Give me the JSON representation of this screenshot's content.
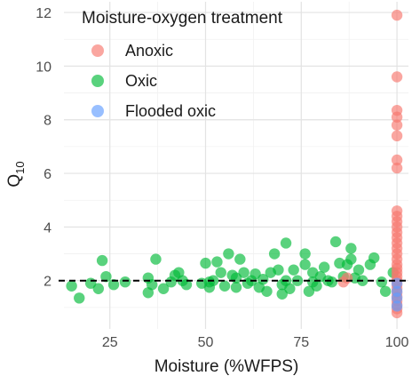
{
  "chart_data": {
    "type": "scatter",
    "title": "",
    "xlabel": "Moisture (%WFPS)",
    "ylabel_main": "Q",
    "ylabel_sub": "10",
    "xlim": [
      13,
      103
    ],
    "ylim": [
      0.2,
      12.4
    ],
    "xticks": [
      25,
      50,
      75,
      100
    ],
    "yticks": [
      2,
      4,
      6,
      8,
      10,
      12
    ],
    "grid": true,
    "legend": {
      "title": "Moisture-oxygen treatment",
      "position": "top-left",
      "entries": [
        {
          "label": "Anoxic",
          "color": "#F8766D"
        },
        {
          "label": "Oxic",
          "color": "#00BA38"
        },
        {
          "label": "Flooded oxic",
          "color": "#619CFF"
        }
      ]
    },
    "reference_line": {
      "y": 2.0,
      "style": "dashed",
      "color": "#000000"
    },
    "series": [
      {
        "name": "Anoxic",
        "color": "#F8766D",
        "points": [
          [
            100,
            11.9
          ],
          [
            100,
            9.6
          ],
          [
            100,
            8.35
          ],
          [
            100,
            8.1
          ],
          [
            100,
            7.8
          ],
          [
            100,
            7.4
          ],
          [
            100,
            6.5
          ],
          [
            100,
            6.2
          ],
          [
            100,
            4.6
          ],
          [
            100,
            4.4
          ],
          [
            100,
            4.2
          ],
          [
            100,
            4.0
          ],
          [
            100,
            3.8
          ],
          [
            100,
            3.6
          ],
          [
            100,
            3.4
          ],
          [
            100,
            3.2
          ],
          [
            100,
            3.0
          ],
          [
            100,
            2.8
          ],
          [
            100,
            2.6
          ],
          [
            100,
            2.45
          ],
          [
            100,
            2.3
          ],
          [
            100,
            2.15
          ],
          [
            100,
            2.0
          ],
          [
            100,
            1.85
          ],
          [
            100,
            1.7
          ],
          [
            100,
            1.55
          ],
          [
            100,
            1.4
          ],
          [
            100,
            1.25
          ],
          [
            100,
            1.1
          ],
          [
            100,
            0.95
          ],
          [
            100,
            0.8
          ],
          [
            86,
            1.95
          ],
          [
            87,
            2.1
          ]
        ]
      },
      {
        "name": "Oxic",
        "color": "#00BA38",
        "points": [
          [
            15,
            1.8
          ],
          [
            17,
            1.35
          ],
          [
            20,
            1.9
          ],
          [
            22,
            1.7
          ],
          [
            23,
            2.75
          ],
          [
            24,
            2.15
          ],
          [
            26,
            1.85
          ],
          [
            29,
            1.95
          ],
          [
            35,
            2.1
          ],
          [
            35,
            1.55
          ],
          [
            36,
            1.85
          ],
          [
            37,
            2.8
          ],
          [
            39,
            1.7
          ],
          [
            41,
            1.95
          ],
          [
            42,
            2.2
          ],
          [
            43,
            2.3
          ],
          [
            44,
            2.0
          ],
          [
            45,
            1.85
          ],
          [
            49,
            1.9
          ],
          [
            50,
            2.65
          ],
          [
            51,
            1.95
          ],
          [
            51,
            1.75
          ],
          [
            52,
            2.0
          ],
          [
            53,
            2.7
          ],
          [
            54,
            2.3
          ],
          [
            55,
            1.8
          ],
          [
            56,
            3.0
          ],
          [
            57,
            2.2
          ],
          [
            58,
            2.1
          ],
          [
            58,
            1.75
          ],
          [
            59,
            2.8
          ],
          [
            60,
            2.3
          ],
          [
            61,
            1.9
          ],
          [
            62,
            2.0
          ],
          [
            63,
            2.25
          ],
          [
            64,
            1.75
          ],
          [
            65,
            2.05
          ],
          [
            66,
            1.6
          ],
          [
            67,
            2.3
          ],
          [
            68,
            3.0
          ],
          [
            69,
            2.4
          ],
          [
            70,
            1.5
          ],
          [
            70,
            1.85
          ],
          [
            71,
            3.4
          ],
          [
            71,
            2.0
          ],
          [
            72,
            1.7
          ],
          [
            73,
            2.4
          ],
          [
            74,
            2.0
          ],
          [
            76,
            3.0
          ],
          [
            76,
            2.6
          ],
          [
            77,
            1.6
          ],
          [
            78,
            2.3
          ],
          [
            78,
            1.95
          ],
          [
            79,
            1.8
          ],
          [
            80,
            2.15
          ],
          [
            81,
            2.5
          ],
          [
            82,
            2.0
          ],
          [
            83,
            1.95
          ],
          [
            84,
            3.45
          ],
          [
            85,
            2.65
          ],
          [
            86,
            2.15
          ],
          [
            87,
            2.6
          ],
          [
            88,
            2.8
          ],
          [
            88,
            3.2
          ],
          [
            89,
            2.1
          ],
          [
            90,
            2.4
          ],
          [
            91,
            2.0
          ],
          [
            93,
            2.6
          ],
          [
            94,
            2.85
          ],
          [
            96,
            1.95
          ],
          [
            97,
            1.6
          ],
          [
            99,
            2.3
          ]
        ]
      },
      {
        "name": "Flooded oxic",
        "color": "#619CFF",
        "points": [
          [
            100,
            1.9
          ],
          [
            100,
            1.6
          ],
          [
            100,
            1.35
          ],
          [
            100,
            1.05
          ]
        ]
      }
    ]
  }
}
